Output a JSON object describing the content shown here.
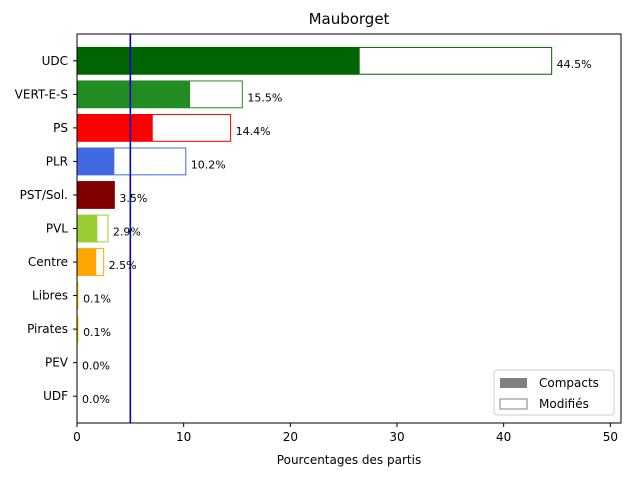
{
  "chart_data": {
    "type": "bar",
    "orientation": "horizontal",
    "title": "Mauborget",
    "xlabel": "Pourcentages des partis",
    "ylabel": "",
    "xlim": [
      0,
      51
    ],
    "xticks": [
      "0",
      "10",
      "20",
      "30",
      "40",
      "50"
    ],
    "threshold": 5,
    "threshold_color": "#0000cc",
    "categories": [
      "UDC",
      "VERT-E-S",
      "PS",
      "PLR",
      "PST/Sol.",
      "PVL",
      "Centre",
      "Libres",
      "Pirates",
      "PEV",
      "UDF"
    ],
    "colors": [
      "#006400",
      "#228b22",
      "#ff0000",
      "#4169e1",
      "#800000",
      "#9acd32",
      "#ffa500",
      "#ffd700",
      "#ffd700",
      "#ffd700",
      "#ffd700"
    ],
    "series": [
      {
        "name": "Compacts",
        "values": [
          26.5,
          10.6,
          7.1,
          3.5,
          3.5,
          1.9,
          1.8,
          0.1,
          0.1,
          0.0,
          0.0
        ]
      },
      {
        "name": "Modifiés",
        "values": [
          44.5,
          15.5,
          14.4,
          10.2,
          3.5,
          2.9,
          2.5,
          0.1,
          0.1,
          0.0,
          0.0
        ]
      }
    ],
    "value_labels": [
      "44.5%",
      "15.5%",
      "14.4%",
      "10.2%",
      "3.5%",
      "2.9%",
      "2.5%",
      "0.1%",
      "0.1%",
      "0.0%",
      "0.0%"
    ],
    "legend": {
      "position": "bottom-right",
      "items": [
        "Compacts",
        "Modifiés"
      ],
      "swatch_color": "#808080"
    },
    "grid": false
  }
}
